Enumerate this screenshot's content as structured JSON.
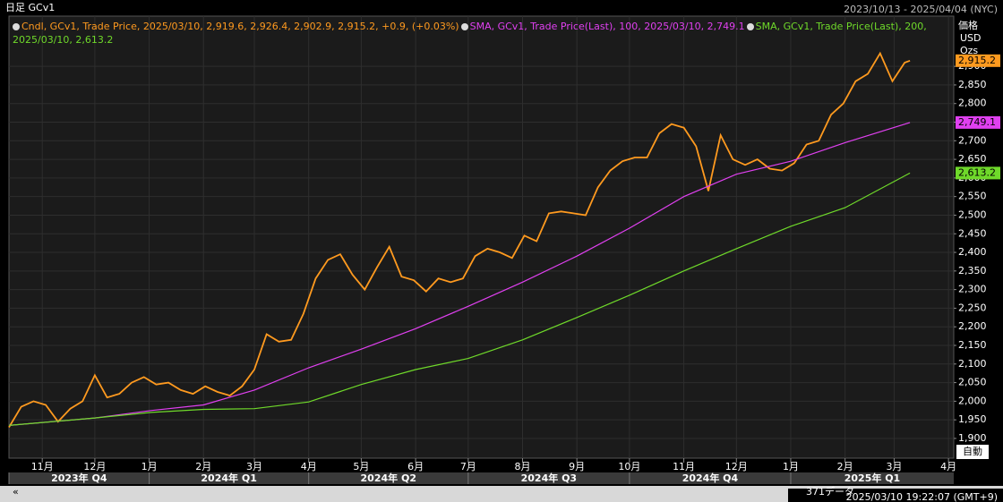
{
  "chart_data": {
    "type": "line",
    "title": "日足 GCv1",
    "range_text": "2023/10/13 - 2025/04/04 (NYC)",
    "axis_header": [
      "価格",
      "USD",
      "Ozs"
    ],
    "scale_mode": "自動",
    "footer_count": "371データ",
    "footer_time": "2025/03/10 19:22:07 (GMT+9)",
    "xlim": [
      "2023/10/13",
      "2025/04/04"
    ],
    "ylim": [
      1847,
      3035
    ],
    "grid": true,
    "xticks": [
      {
        "value": "2023/11/01",
        "label": "11月"
      },
      {
        "value": "2023/12/01",
        "label": "12月"
      },
      {
        "value": "2024/01/01",
        "label": "1月"
      },
      {
        "value": "2024/02/01",
        "label": "2月"
      },
      {
        "value": "2024/03/01",
        "label": "3月"
      },
      {
        "value": "2024/04/01",
        "label": "4月"
      },
      {
        "value": "2024/05/01",
        "label": "5月"
      },
      {
        "value": "2024/06/01",
        "label": "6月"
      },
      {
        "value": "2024/07/01",
        "label": "7月"
      },
      {
        "value": "2024/08/01",
        "label": "8月"
      },
      {
        "value": "2024/09/01",
        "label": "9月"
      },
      {
        "value": "2024/10/01",
        "label": "10月"
      },
      {
        "value": "2024/11/01",
        "label": "11月"
      },
      {
        "value": "2024/12/01",
        "label": "12月"
      },
      {
        "value": "2025/01/01",
        "label": "1月"
      },
      {
        "value": "2025/02/01",
        "label": "2月"
      },
      {
        "value": "2025/03/01",
        "label": "3月"
      },
      {
        "value": "2025/04/01",
        "label": "4月"
      }
    ],
    "quarters": [
      {
        "value": "2023/10/01",
        "label": "2023年 Q4"
      },
      {
        "value": "2024/01/01",
        "label": "2024年 Q1"
      },
      {
        "value": "2024/04/01",
        "label": "2024年 Q2"
      },
      {
        "value": "2024/07/01",
        "label": "2024年 Q3"
      },
      {
        "value": "2024/10/01",
        "label": "2024年 Q4"
      },
      {
        "value": "2025/01/01",
        "label": "2025年 Q1"
      }
    ],
    "yticks": [
      {
        "value": 1900,
        "label": "1,900"
      },
      {
        "value": 1950,
        "label": "1,950"
      },
      {
        "value": 2000,
        "label": "2,000"
      },
      {
        "value": 2050,
        "label": "2,050"
      },
      {
        "value": 2100,
        "label": "2,100"
      },
      {
        "value": 2150,
        "label": "2,150"
      },
      {
        "value": 2200,
        "label": "2,200"
      },
      {
        "value": 2250,
        "label": "2,250"
      },
      {
        "value": 2300,
        "label": "2,300"
      },
      {
        "value": 2350,
        "label": "2,350"
      },
      {
        "value": 2400,
        "label": "2,400"
      },
      {
        "value": 2450,
        "label": "2,450"
      },
      {
        "value": 2500,
        "label": "2,500"
      },
      {
        "value": 2550,
        "label": "2,550"
      },
      {
        "value": 2600,
        "label": "2,600"
      },
      {
        "value": 2650,
        "label": "2,650"
      },
      {
        "value": 2700,
        "label": "2,700"
      },
      {
        "value": 2750,
        "label": "2,750"
      },
      {
        "value": 2800,
        "label": "2,800"
      },
      {
        "value": 2850,
        "label": "2,850"
      },
      {
        "value": 2900,
        "label": "2,900"
      }
    ],
    "series": [
      {
        "name": "Cndl, GCv1, Trade Price, 2025/03/10, 2,919.6, 2,926.4, 2,902.9, 2,915.2, +0.9, (+0.03%)",
        "color": "#ff9a1f",
        "last_label": "2,915.2",
        "x": [
          "2023/10/13",
          "2023/10/20",
          "2023/10/27",
          "2023/11/03",
          "2023/11/10",
          "2023/11/17",
          "2023/11/24",
          "2023/12/01",
          "2023/12/08",
          "2023/12/15",
          "2023/12/22",
          "2023/12/29",
          "2024/01/05",
          "2024/01/12",
          "2024/01/19",
          "2024/01/26",
          "2024/02/02",
          "2024/02/09",
          "2024/02/16",
          "2024/02/23",
          "2024/03/01",
          "2024/03/08",
          "2024/03/15",
          "2024/03/22",
          "2024/03/29",
          "2024/04/05",
          "2024/04/12",
          "2024/04/19",
          "2024/04/26",
          "2024/05/03",
          "2024/05/10",
          "2024/05/17",
          "2024/05/24",
          "2024/05/31",
          "2024/06/07",
          "2024/06/14",
          "2024/06/21",
          "2024/06/28",
          "2024/07/05",
          "2024/07/12",
          "2024/07/19",
          "2024/07/26",
          "2024/08/02",
          "2024/08/09",
          "2024/08/16",
          "2024/08/23",
          "2024/08/30",
          "2024/09/06",
          "2024/09/13",
          "2024/09/20",
          "2024/09/27",
          "2024/10/04",
          "2024/10/11",
          "2024/10/18",
          "2024/10/25",
          "2024/11/01",
          "2024/11/08",
          "2024/11/15",
          "2024/11/22",
          "2024/11/29",
          "2024/12/06",
          "2024/12/13",
          "2024/12/20",
          "2024/12/27",
          "2025/01/03",
          "2025/01/10",
          "2025/01/17",
          "2025/01/24",
          "2025/01/31",
          "2025/02/07",
          "2025/02/14",
          "2025/02/21",
          "2025/02/28",
          "2025/03/07",
          "2025/03/10"
        ],
        "values": [
          1930,
          1985,
          2000,
          1990,
          1945,
          1980,
          2000,
          2070,
          2010,
          2020,
          2050,
          2065,
          2045,
          2050,
          2030,
          2020,
          2040,
          2025,
          2015,
          2040,
          2085,
          2180,
          2160,
          2165,
          2235,
          2330,
          2380,
          2395,
          2340,
          2300,
          2360,
          2415,
          2335,
          2325,
          2295,
          2330,
          2320,
          2330,
          2390,
          2410,
          2400,
          2385,
          2445,
          2430,
          2505,
          2510,
          2505,
          2500,
          2575,
          2620,
          2645,
          2655,
          2655,
          2720,
          2745,
          2735,
          2685,
          2565,
          2715,
          2650,
          2635,
          2650,
          2625,
          2620,
          2640,
          2690,
          2700,
          2770,
          2800,
          2860,
          2880,
          2935,
          2860,
          2910,
          2915.2
        ]
      },
      {
        "name": "SMA, GCv1, Trade Price(Last), 100, 2025/03/10, 2,749.1",
        "color": "#e040f0",
        "last_label": "2,749.1",
        "x": [
          "2023/10/13",
          "2023/12/01",
          "2024/01/02",
          "2024/02/01",
          "2024/03/01",
          "2024/04/01",
          "2024/05/01",
          "2024/06/01",
          "2024/07/01",
          "2024/08/01",
          "2024/09/01",
          "2024/10/01",
          "2024/11/01",
          "2024/12/01",
          "2025/01/01",
          "2025/02/01",
          "2025/03/10"
        ],
        "values": [
          1935,
          1955,
          1975,
          1990,
          2030,
          2090,
          2140,
          2195,
          2255,
          2320,
          2390,
          2465,
          2550,
          2610,
          2645,
          2695,
          2749.1
        ]
      },
      {
        "name": "SMA, GCv1, Trade Price(Last), 200, 2025/03/10, 2,613.2",
        "color": "#6fd92a",
        "last_label": "2,613.2",
        "x": [
          "2023/10/13",
          "2023/12/01",
          "2024/01/02",
          "2024/02/01",
          "2024/03/01",
          "2024/04/01",
          "2024/05/01",
          "2024/06/01",
          "2024/07/01",
          "2024/08/01",
          "2024/09/01",
          "2024/10/01",
          "2024/11/01",
          "2024/12/01",
          "2025/01/01",
          "2025/02/01",
          "2025/03/10"
        ],
        "values": [
          1935,
          1955,
          1970,
          1978,
          1980,
          1998,
          2045,
          2085,
          2115,
          2165,
          2225,
          2285,
          2350,
          2410,
          2470,
          2520,
          2613.2
        ]
      }
    ]
  }
}
